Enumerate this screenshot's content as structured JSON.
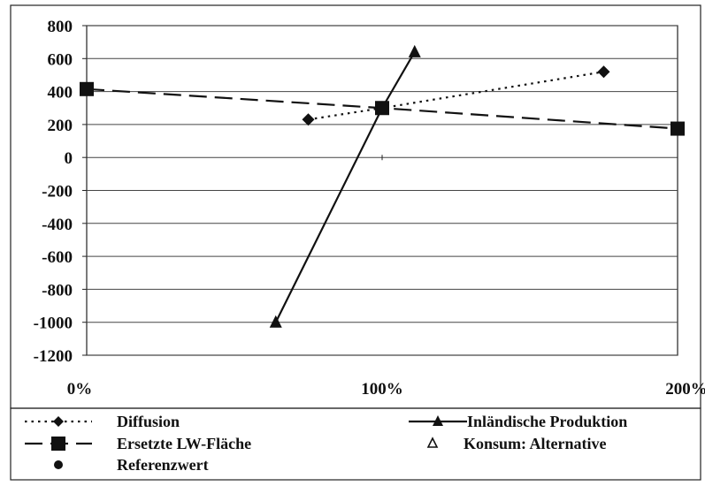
{
  "chart_data": {
    "type": "line",
    "title": "",
    "xlabel": "",
    "ylabel": "",
    "xlim": [
      0,
      200
    ],
    "ylim": [
      -1200,
      800
    ],
    "yticks": [
      800,
      600,
      400,
      200,
      0,
      -200,
      -400,
      -600,
      -800,
      -1000,
      -1200
    ],
    "xticks": [
      0,
      100,
      200
    ],
    "xtick_labels": [
      "0%",
      "100%",
      "200%"
    ],
    "grid": "horizontal",
    "legend_position": "bottom",
    "series": [
      {
        "name": "Diffusion",
        "style": "dotted",
        "marker": "diamond",
        "color": "#111111",
        "points": [
          [
            75,
            230
          ],
          [
            100,
            300
          ],
          [
            175,
            520
          ]
        ]
      },
      {
        "name": "Inländische Produktion",
        "style": "solid",
        "marker": "triangle",
        "color": "#111111",
        "points": [
          [
            64,
            -1000
          ],
          [
            100,
            300
          ],
          [
            111,
            640
          ]
        ]
      },
      {
        "name": "Ersetzte LW-Fläche",
        "style": "dashed",
        "marker": "square",
        "color": "#111111",
        "points": [
          [
            0,
            415
          ],
          [
            100,
            300
          ],
          [
            200,
            175
          ]
        ]
      },
      {
        "name": "Konsum: Alternative",
        "style": "none",
        "marker": "triangle-open",
        "color": "#111111",
        "points": []
      },
      {
        "name": "Referenzwert",
        "style": "none",
        "marker": "circle",
        "color": "#111111",
        "points": [
          [
            100,
            300
          ]
        ]
      }
    ]
  }
}
